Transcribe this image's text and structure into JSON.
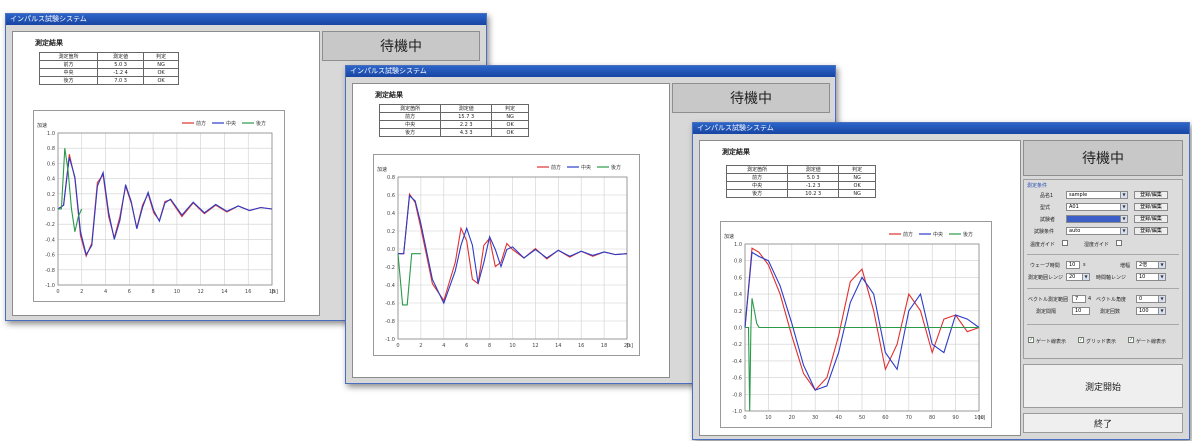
{
  "app_title": "インパルス試験システム",
  "status_text": "待機中",
  "result_title": "測定結果",
  "table": {
    "headers": [
      "測定箇所",
      "測定値",
      "判定"
    ],
    "windows": [
      [
        [
          "前方",
          "5.0 3",
          "NG"
        ],
        [
          "中央",
          "-1.2 4",
          "OK"
        ],
        [
          "後方",
          "7.0 3",
          "OK"
        ]
      ],
      [
        [
          "前方",
          "15.7 3",
          "NG"
        ],
        [
          "中央",
          "2.2 3",
          "OK"
        ],
        [
          "後方",
          "4.3 3",
          "OK"
        ]
      ],
      [
        [
          "前方",
          "5.0 3",
          "NG"
        ],
        [
          "中央",
          "-1.2 3",
          "OK"
        ],
        [
          "後方",
          "10.2 3",
          "NG"
        ]
      ]
    ]
  },
  "legend": [
    "前方",
    "中央",
    "後方"
  ],
  "controls": {
    "section_label": "測定条件",
    "rows": [
      {
        "label": "品名1",
        "value": "sample",
        "button": "登録/編集"
      },
      {
        "label": "型式",
        "value": "A01",
        "button": "登録/編集"
      },
      {
        "label": "試験者",
        "value": "",
        "button": "登録/編集"
      },
      {
        "label": "試験条件",
        "value": "auto",
        "button": "登録/編集"
      }
    ],
    "check_a": "温度ガイド",
    "check_b": "湿度ガイド",
    "wave_time_label": "ウェーブ時間",
    "wave_time_value": "10",
    "wave_time_unit": "s",
    "gain_label": "増幅",
    "gain_value": "2倍",
    "sampling_label": "測定範囲レンジ",
    "sampling_value": "20",
    "trigger_label": "時間軸レンジ",
    "trigger_value": "10",
    "vector_label": "ベクトル測定範囲",
    "vector_value": "7",
    "vector_unit": "4",
    "vector_b_label": "ベクトル角度",
    "vector_b_value": "0",
    "interval_label": "測定間隔",
    "interval_value": "10",
    "interval_b_label": "測定回数",
    "interval_b_value": "100",
    "show_a": "ゲート線表示",
    "show_b": "グリッド表示",
    "show_c": "ゲート線表示",
    "start_button": "測定開始",
    "exit_button": "終了"
  },
  "colors": {
    "front": "#e03030",
    "center": "#2a3cc8",
    "rear": "#2a9a4a",
    "titlebar": "#1f52b8",
    "section": "#2a4fb0"
  },
  "chart_data": [
    {
      "type": "line",
      "title": "",
      "ylabel": "加速",
      "xlabel": "[s]",
      "x_ticks": [
        "0",
        "2",
        "4",
        "6",
        "8",
        "10",
        "12",
        "14",
        "16",
        "18"
      ],
      "y_ticks": [
        "1.0",
        "0.8",
        "0.6",
        "0.4",
        "0.2",
        "0.0",
        "-0.2",
        "-0.4",
        "-0.6",
        "-0.8",
        "-1.0"
      ],
      "ylim": [
        -1.0,
        1.0
      ],
      "xlim": [
        0,
        19
      ],
      "series": [
        {
          "name": "前方",
          "x": [
            0,
            0.5,
            1,
            1.5,
            2,
            2.5,
            3,
            3.5,
            4,
            4.5,
            5,
            5.5,
            6,
            6.5,
            7,
            7.5,
            8,
            8.5,
            9,
            9.5,
            10,
            11,
            12,
            13,
            14,
            15,
            16,
            17,
            18,
            19
          ],
          "y": [
            0.0,
            0.05,
            0.72,
            0.4,
            -0.35,
            -0.62,
            -0.45,
            0.35,
            0.45,
            -0.1,
            -0.38,
            -0.1,
            0.3,
            0.08,
            -0.25,
            0.05,
            0.2,
            -0.05,
            -0.15,
            0.1,
            0.12,
            -0.1,
            0.08,
            -0.06,
            0.05,
            -0.04,
            0.04,
            -0.02,
            0.02,
            0.0
          ]
        },
        {
          "name": "中央",
          "x": [
            0,
            0.5,
            1,
            1.5,
            2,
            2.5,
            3,
            3.5,
            4,
            4.5,
            5,
            5.5,
            6,
            6.5,
            7,
            7.5,
            8,
            8.5,
            9,
            9.5,
            10,
            11,
            12,
            13,
            14,
            15,
            16,
            17,
            18,
            19
          ],
          "y": [
            0.0,
            0.05,
            0.68,
            0.42,
            -0.3,
            -0.6,
            -0.48,
            0.3,
            0.48,
            -0.05,
            -0.4,
            -0.15,
            0.32,
            0.1,
            -0.26,
            0.02,
            0.22,
            -0.02,
            -0.16,
            0.08,
            0.13,
            -0.08,
            0.09,
            -0.05,
            0.06,
            -0.03,
            0.04,
            -0.02,
            0.02,
            0.0
          ]
        },
        {
          "name": "後方",
          "x": [
            0,
            0.3,
            0.6,
            0.9,
            1.2,
            1.5,
            1.8,
            2.1
          ],
          "y": [
            0.0,
            0.0,
            0.8,
            0.5,
            0.0,
            -0.3,
            -0.1,
            0.0
          ]
        }
      ]
    },
    {
      "type": "line",
      "title": "",
      "ylabel": "加速",
      "xlabel": "[s]",
      "x_ticks": [
        "0",
        "2",
        "4",
        "6",
        "8",
        "10",
        "12",
        "14",
        "16",
        "18",
        "20"
      ],
      "y_ticks": [
        "0.8",
        "0.6",
        "0.4",
        "0.2",
        "0.0",
        "-0.2",
        "-0.4",
        "-0.6",
        "-0.8",
        "-1.0"
      ],
      "ylim": [
        -1.0,
        0.9
      ],
      "xlim": [
        0,
        20
      ],
      "series": [
        {
          "name": "前方",
          "x": [
            0,
            0.5,
            1,
            1.5,
            2,
            3,
            4,
            5,
            5.5,
            6,
            6.5,
            7,
            7.5,
            8,
            8.5,
            9,
            9.5,
            10,
            11,
            12,
            13,
            14,
            15,
            16,
            17,
            18,
            19,
            20
          ],
          "y": [
            0.0,
            0.0,
            0.7,
            0.6,
            0.3,
            -0.35,
            -0.55,
            -0.1,
            0.3,
            0.15,
            -0.3,
            -0.35,
            0.1,
            0.18,
            -0.15,
            -0.1,
            0.12,
            0.05,
            -0.05,
            0.06,
            -0.06,
            0.04,
            -0.04,
            0.03,
            -0.03,
            0.02,
            -0.01,
            0.0
          ]
        },
        {
          "name": "中央",
          "x": [
            0,
            0.5,
            1,
            1.5,
            2,
            3,
            4,
            5,
            5.5,
            6,
            6.5,
            7,
            7.5,
            8,
            8.5,
            9,
            9.5,
            10,
            11,
            12,
            13,
            14,
            15,
            16,
            17,
            18,
            19,
            20
          ],
          "y": [
            0.0,
            0.0,
            0.68,
            0.62,
            0.35,
            -0.3,
            -0.58,
            -0.2,
            0.1,
            0.3,
            0.1,
            -0.35,
            -0.1,
            0.2,
            0.05,
            -0.15,
            0.05,
            0.08,
            -0.05,
            0.05,
            -0.05,
            0.04,
            -0.03,
            0.03,
            -0.02,
            0.02,
            -0.01,
            0.0
          ]
        },
        {
          "name": "後方",
          "x": [
            0,
            0.4,
            0.8,
            1.2,
            1.6,
            2.0
          ],
          "y": [
            0.0,
            -0.6,
            -0.6,
            0.0,
            0.0,
            0.0
          ]
        }
      ]
    },
    {
      "type": "line",
      "title": "",
      "ylabel": "加速",
      "xlabel": "[s]",
      "x_ticks": [
        "0",
        "10",
        "20",
        "30",
        "40",
        "50",
        "60",
        "70",
        "80",
        "90",
        "100"
      ],
      "y_ticks": [
        "1.0",
        "0.8",
        "0.6",
        "0.4",
        "0.2",
        "0.0",
        "-0.2",
        "-0.4",
        "-0.6",
        "-0.8",
        "-1.0"
      ],
      "ylim": [
        -1.0,
        1.0
      ],
      "xlim": [
        0,
        100
      ],
      "series": [
        {
          "name": "前方",
          "x": [
            0,
            3,
            6,
            10,
            15,
            20,
            25,
            30,
            35,
            40,
            45,
            50,
            55,
            60,
            65,
            70,
            75,
            80,
            85,
            90,
            95,
            100
          ],
          "y": [
            0.0,
            0.95,
            0.9,
            0.75,
            0.4,
            -0.1,
            -0.55,
            -0.75,
            -0.6,
            -0.1,
            0.55,
            0.7,
            0.2,
            -0.5,
            -0.2,
            0.4,
            0.2,
            -0.3,
            0.1,
            0.15,
            -0.05,
            0.0
          ]
        },
        {
          "name": "中央",
          "x": [
            0,
            3,
            6,
            10,
            15,
            20,
            25,
            30,
            35,
            40,
            45,
            50,
            55,
            60,
            65,
            70,
            75,
            80,
            85,
            90,
            95,
            100
          ],
          "y": [
            0.0,
            0.9,
            0.85,
            0.8,
            0.5,
            0.05,
            -0.45,
            -0.75,
            -0.7,
            -0.3,
            0.3,
            0.6,
            0.4,
            -0.3,
            -0.5,
            0.2,
            0.4,
            -0.2,
            -0.3,
            0.15,
            0.1,
            0.0
          ]
        },
        {
          "name": "後方",
          "x": [
            0,
            1.5,
            2,
            2.5,
            3,
            4,
            5,
            6,
            8,
            100
          ],
          "y": [
            0.0,
            0.0,
            -1.0,
            0.0,
            0.35,
            0.2,
            0.05,
            0.0,
            0.0,
            0.0
          ]
        }
      ]
    }
  ]
}
